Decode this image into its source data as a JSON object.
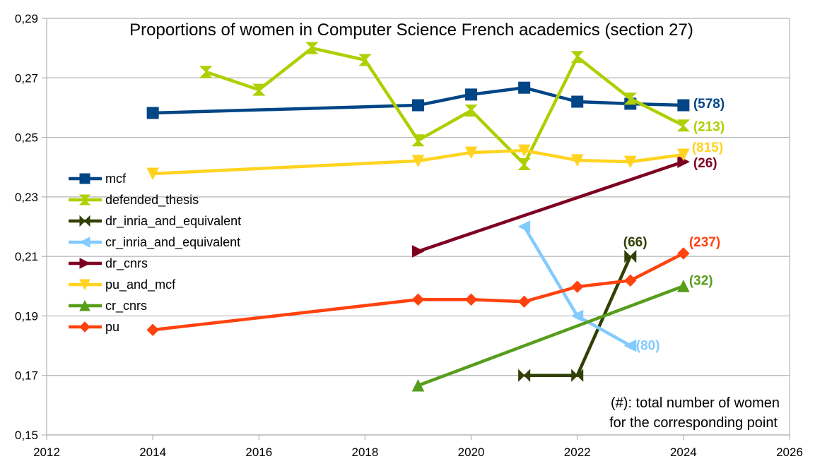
{
  "chart_data": {
    "type": "line",
    "title": "Proportions of women in Computer Science French academics (section 27)",
    "xlabel": "",
    "ylabel": "",
    "xlim": [
      2012,
      2026
    ],
    "ylim": [
      0.15,
      0.29
    ],
    "x_ticks": [
      "2012",
      "2014",
      "2016",
      "2018",
      "2020",
      "2022",
      "2024",
      "2026"
    ],
    "y_ticks": [
      "0,15",
      "0,17",
      "0,19",
      "0,21",
      "0,23",
      "0,25",
      "0,27",
      "0,29"
    ],
    "grid": "horizontal",
    "legend_position": "left-middle",
    "series": [
      {
        "name": "mcf",
        "color": "#004586",
        "marker": "square",
        "x": [
          2014,
          2019,
          2020,
          2021,
          2022,
          2023,
          2024
        ],
        "values": [
          0.2582,
          0.2608,
          0.2644,
          0.2667,
          0.262,
          0.2613,
          0.2608
        ],
        "annotation": "(578)"
      },
      {
        "name": "defended_thesis",
        "color": "#AECF00",
        "marker": "hourglass",
        "x": [
          2015,
          2016,
          2017,
          2018,
          2019,
          2020,
          2021,
          2022,
          2023,
          2024
        ],
        "values": [
          0.272,
          0.266,
          0.28,
          0.276,
          0.249,
          0.259,
          0.241,
          0.277,
          0.263,
          0.254
        ],
        "annotation": "(213)"
      },
      {
        "name": "dr_inria_and_equivalent",
        "color": "#314004",
        "marker": "bowtie",
        "x": [
          2021,
          2022,
          2023
        ],
        "values": [
          0.17,
          0.17,
          0.21
        ],
        "annotation": "(66)"
      },
      {
        "name": "cr_inria_and_equivalent",
        "color": "#83CAFF",
        "marker": "triangle-left",
        "x": [
          2021,
          2022,
          2023
        ],
        "values": [
          0.22,
          0.19,
          0.18
        ],
        "annotation": "(80)"
      },
      {
        "name": "dr_cnrs",
        "color": "#7E0021",
        "marker": "triangle-right",
        "x": [
          2019,
          2024
        ],
        "values": [
          0.2117,
          0.2418
        ],
        "annotation": "(26)"
      },
      {
        "name": "pu_and_mcf",
        "color": "#FFD320",
        "marker": "triangle-down",
        "x": [
          2014,
          2019,
          2020,
          2021,
          2022,
          2023,
          2024
        ],
        "values": [
          0.2378,
          0.2421,
          0.2449,
          0.2456,
          0.2423,
          0.2418,
          0.2442
        ],
        "annotation": "(815)"
      },
      {
        "name": "cr_cnrs",
        "color": "#579D1C",
        "marker": "triangle-up",
        "x": [
          2019,
          2024
        ],
        "values": [
          0.1666,
          0.2
        ],
        "annotation": "(32)"
      },
      {
        "name": "pu",
        "color": "#FF420E",
        "marker": "diamond",
        "x": [
          2014,
          2019,
          2020,
          2021,
          2022,
          2023,
          2024
        ],
        "values": [
          0.1853,
          0.1955,
          0.1955,
          0.1948,
          0.1998,
          0.2019,
          0.211
        ],
        "annotation": "(237)"
      }
    ],
    "note_lines": [
      "(#): total number of women",
      "for the corresponding point"
    ]
  }
}
